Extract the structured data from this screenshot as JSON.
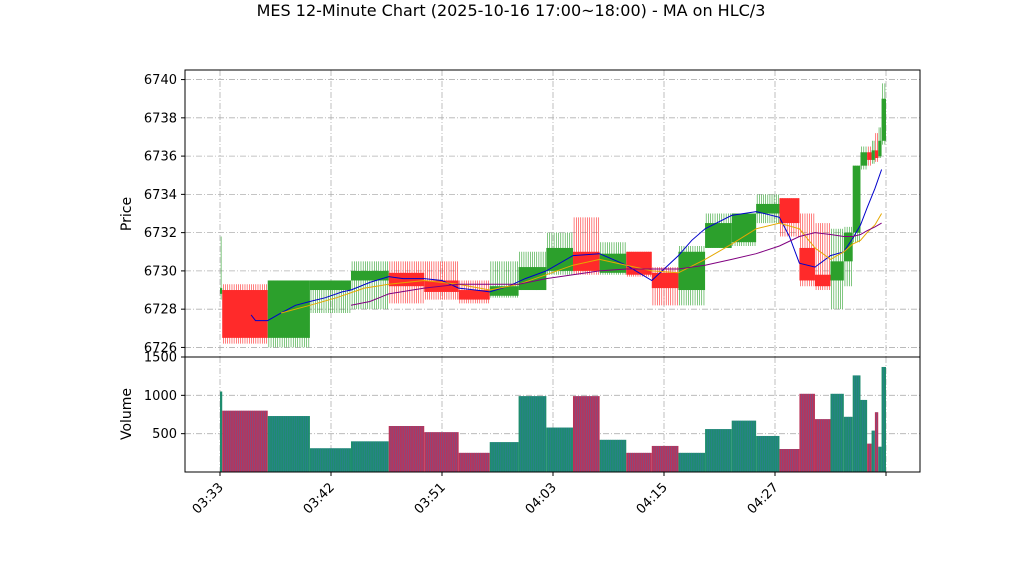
{
  "chart_data": {
    "type": "candlestick",
    "title": "MES 12-Minute Chart (2025-10-16 17:00~18:00) - MA on HLC/3",
    "price_panel": {
      "ylabel": "Price",
      "ylim": [
        6725.5,
        6740.5
      ],
      "yticks": [
        6726,
        6728,
        6730,
        6732,
        6734,
        6736,
        6738,
        6740
      ],
      "grid": true
    },
    "volume_panel": {
      "ylabel": "Volume",
      "ylim": [
        0,
        1500
      ],
      "yticks": [
        500,
        1000,
        1500
      ],
      "grid": true
    },
    "x_range": [
      0,
      60
    ],
    "xticks": [
      {
        "x": 0,
        "label": "03:33"
      },
      {
        "x": 10,
        "label": "03:42"
      },
      {
        "x": 20,
        "label": "03:51"
      },
      {
        "x": 30,
        "label": "04:03"
      },
      {
        "x": 40,
        "label": "04:15"
      },
      {
        "x": 50,
        "label": "04:27"
      },
      {
        "x": 60,
        "label": ""
      }
    ],
    "candles": [
      {
        "x0": 0,
        "x1": 0.2,
        "open": 6728.8,
        "close": 6729.1,
        "high": 6731.8,
        "low": 6728.5,
        "volume": 1050
      },
      {
        "x0": 0.2,
        "x1": 4.3,
        "open": 6729.0,
        "close": 6726.5,
        "high": 6729.3,
        "low": 6726.2,
        "volume": 800
      },
      {
        "x0": 4.3,
        "x1": 8.1,
        "open": 6726.5,
        "close": 6729.5,
        "high": 6729.5,
        "low": 6726.0,
        "volume": 730
      },
      {
        "x0": 8.1,
        "x1": 11.8,
        "open": 6729.0,
        "close": 6729.5,
        "high": 6729.5,
        "low": 6727.8,
        "volume": 310
      },
      {
        "x0": 11.8,
        "x1": 15.2,
        "open": 6729.5,
        "close": 6730.0,
        "high": 6730.5,
        "low": 6728.0,
        "volume": 400
      },
      {
        "x0": 15.2,
        "x1": 18.4,
        "open": 6729.9,
        "close": 6729.2,
        "high": 6730.5,
        "low": 6728.3,
        "volume": 600
      },
      {
        "x0": 18.4,
        "x1": 21.5,
        "open": 6729.5,
        "close": 6728.9,
        "high": 6730.5,
        "low": 6728.5,
        "volume": 520
      },
      {
        "x0": 21.5,
        "x1": 24.3,
        "open": 6729.0,
        "close": 6728.5,
        "high": 6729.5,
        "low": 6728.3,
        "volume": 250
      },
      {
        "x0": 24.3,
        "x1": 26.9,
        "open": 6728.7,
        "close": 6729.2,
        "high": 6730.5,
        "low": 6728.6,
        "volume": 390
      },
      {
        "x0": 26.9,
        "x1": 29.4,
        "open": 6729.0,
        "close": 6730.2,
        "high": 6731.0,
        "low": 6729.0,
        "volume": 990
      },
      {
        "x0": 29.4,
        "x1": 31.8,
        "open": 6730.0,
        "close": 6731.2,
        "high": 6732.0,
        "low": 6729.8,
        "volume": 580
      },
      {
        "x0": 31.8,
        "x1": 34.2,
        "open": 6731.0,
        "close": 6730.0,
        "high": 6732.8,
        "low": 6729.8,
        "volume": 990
      },
      {
        "x0": 34.2,
        "x1": 36.6,
        "open": 6729.9,
        "close": 6730.9,
        "high": 6731.5,
        "low": 6729.8,
        "volume": 420
      },
      {
        "x0": 36.6,
        "x1": 38.9,
        "open": 6731.0,
        "close": 6729.8,
        "high": 6731.0,
        "low": 6729.7,
        "volume": 250
      },
      {
        "x0": 38.9,
        "x1": 41.3,
        "open": 6729.9,
        "close": 6729.1,
        "high": 6730.2,
        "low": 6728.2,
        "volume": 340
      },
      {
        "x0": 41.3,
        "x1": 43.7,
        "open": 6729.0,
        "close": 6731.0,
        "high": 6731.3,
        "low": 6728.2,
        "volume": 250
      },
      {
        "x0": 43.7,
        "x1": 46.1,
        "open": 6731.2,
        "close": 6732.5,
        "high": 6733.0,
        "low": 6731.2,
        "volume": 560
      },
      {
        "x0": 46.1,
        "x1": 48.3,
        "open": 6731.5,
        "close": 6733.0,
        "high": 6733.0,
        "low": 6731.3,
        "volume": 670
      },
      {
        "x0": 48.3,
        "x1": 50.4,
        "open": 6733.0,
        "close": 6733.5,
        "high": 6734.0,
        "low": 6732.5,
        "volume": 470
      },
      {
        "x0": 50.4,
        "x1": 52.2,
        "open": 6733.8,
        "close": 6732.5,
        "high": 6733.8,
        "low": 6731.8,
        "volume": 300
      },
      {
        "x0": 52.2,
        "x1": 53.6,
        "open": 6731.2,
        "close": 6729.5,
        "high": 6733.0,
        "low": 6729.2,
        "volume": 1020
      },
      {
        "x0": 53.6,
        "x1": 55.0,
        "open": 6729.8,
        "close": 6729.2,
        "high": 6732.5,
        "low": 6729.0,
        "volume": 690
      },
      {
        "x0": 55.0,
        "x1": 56.2,
        "open": 6729.5,
        "close": 6730.5,
        "high": 6732.2,
        "low": 6728.0,
        "volume": 1020
      },
      {
        "x0": 56.2,
        "x1": 57.0,
        "open": 6730.5,
        "close": 6732.0,
        "high": 6732.3,
        "low": 6729.2,
        "volume": 720
      },
      {
        "x0": 57.0,
        "x1": 57.7,
        "open": 6732.0,
        "close": 6735.5,
        "high": 6735.5,
        "low": 6731.5,
        "volume": 1260
      },
      {
        "x0": 57.7,
        "x1": 58.3,
        "open": 6735.5,
        "close": 6736.2,
        "high": 6736.5,
        "low": 6735.3,
        "volume": 940
      },
      {
        "x0": 58.3,
        "x1": 58.7,
        "open": 6736.2,
        "close": 6735.8,
        "high": 6736.5,
        "low": 6735.5,
        "volume": 370
      },
      {
        "x0": 58.7,
        "x1": 59.0,
        "open": 6735.8,
        "close": 6736.3,
        "high": 6736.8,
        "low": 6735.6,
        "volume": 540
      },
      {
        "x0": 59.0,
        "x1": 59.3,
        "open": 6736.3,
        "close": 6735.9,
        "high": 6737.2,
        "low": 6735.7,
        "volume": 780
      },
      {
        "x0": 59.3,
        "x1": 59.6,
        "open": 6736.0,
        "close": 6736.8,
        "high": 6737.5,
        "low": 6735.9,
        "volume": 330
      },
      {
        "x0": 59.6,
        "x1": 60.0,
        "open": 6736.8,
        "close": 6739.0,
        "high": 6739.8,
        "low": 6736.6,
        "volume": 1370
      }
    ],
    "series": [
      {
        "color": "#0000cc",
        "x": [
          2.8,
          3.2,
          4.3,
          5.5,
          6.8,
          8.1,
          9.5,
          11.0,
          11.8,
          13.5,
          15.2,
          16.5,
          18.4,
          20.0,
          21.5,
          23.0,
          24.3,
          26.0,
          27.5,
          29.4,
          31.8,
          34.2,
          36.6,
          38.9,
          41.3,
          42.5,
          43.7,
          46.1,
          48.3,
          50.4,
          51.3,
          52.2,
          53.6,
          55.0,
          56.2,
          57.0,
          57.7,
          58.3,
          59.0,
          59.6
        ],
        "y": [
          6727.7,
          6727.4,
          6727.4,
          6727.8,
          6728.2,
          6728.4,
          6728.6,
          6728.9,
          6729.0,
          6729.4,
          6729.7,
          6729.6,
          6729.6,
          6729.5,
          6729.1,
          6729.0,
          6728.9,
          6729.2,
          6729.6,
          6730.0,
          6730.8,
          6730.9,
          6730.3,
          6729.5,
          6730.8,
          6731.6,
          6732.2,
          6732.9,
          6733.1,
          6732.8,
          6731.8,
          6730.4,
          6730.2,
          6730.8,
          6731.0,
          6731.7,
          6732.4,
          6733.3,
          6734.3,
          6735.3
        ]
      },
      {
        "color": "#e6a800",
        "x": [
          5.5,
          8.1,
          10.5,
          13.0,
          15.2,
          18.4,
          21.5,
          24.3,
          26.9,
          29.4,
          31.8,
          34.2,
          36.6,
          38.9,
          41.3,
          43.7,
          46.1,
          48.3,
          50.4,
          52.2,
          53.6,
          55.0,
          56.2,
          57.0,
          57.7,
          58.3,
          59.0,
          59.6
        ],
        "y": [
          6727.8,
          6728.2,
          6728.6,
          6729.1,
          6729.3,
          6729.5,
          6729.3,
          6729.0,
          6729.3,
          6729.8,
          6730.3,
          6730.6,
          6730.3,
          6730.0,
          6729.9,
          6730.6,
          6731.4,
          6732.2,
          6732.5,
          6732.2,
          6731.2,
          6730.6,
          6731.0,
          6731.4,
          6731.6,
          6732.0,
          6732.4,
          6733.0
        ]
      },
      {
        "color": "#800080",
        "x": [
          11.8,
          13.5,
          15.2,
          18.4,
          21.5,
          24.3,
          26.9,
          29.4,
          31.8,
          34.2,
          36.6,
          38.9,
          41.3,
          43.7,
          46.1,
          48.3,
          50.4,
          52.2,
          53.6,
          55.0,
          56.2,
          57.0,
          57.7,
          58.3,
          59.0,
          59.6
        ],
        "y": [
          6728.2,
          6728.4,
          6728.8,
          6729.1,
          6729.3,
          6729.3,
          6729.3,
          6729.6,
          6729.8,
          6730.0,
          6730.1,
          6730.1,
          6730.1,
          6730.3,
          6730.6,
          6730.9,
          6731.3,
          6731.8,
          6732.0,
          6731.9,
          6731.8,
          6731.8,
          6731.9,
          6732.1,
          6732.3,
          6732.5
        ]
      }
    ],
    "colors": {
      "up": "#2ca02c",
      "down": "#ff2a2a",
      "volume_up": "#1e8c6e",
      "volume_down": "#b8345a"
    }
  }
}
